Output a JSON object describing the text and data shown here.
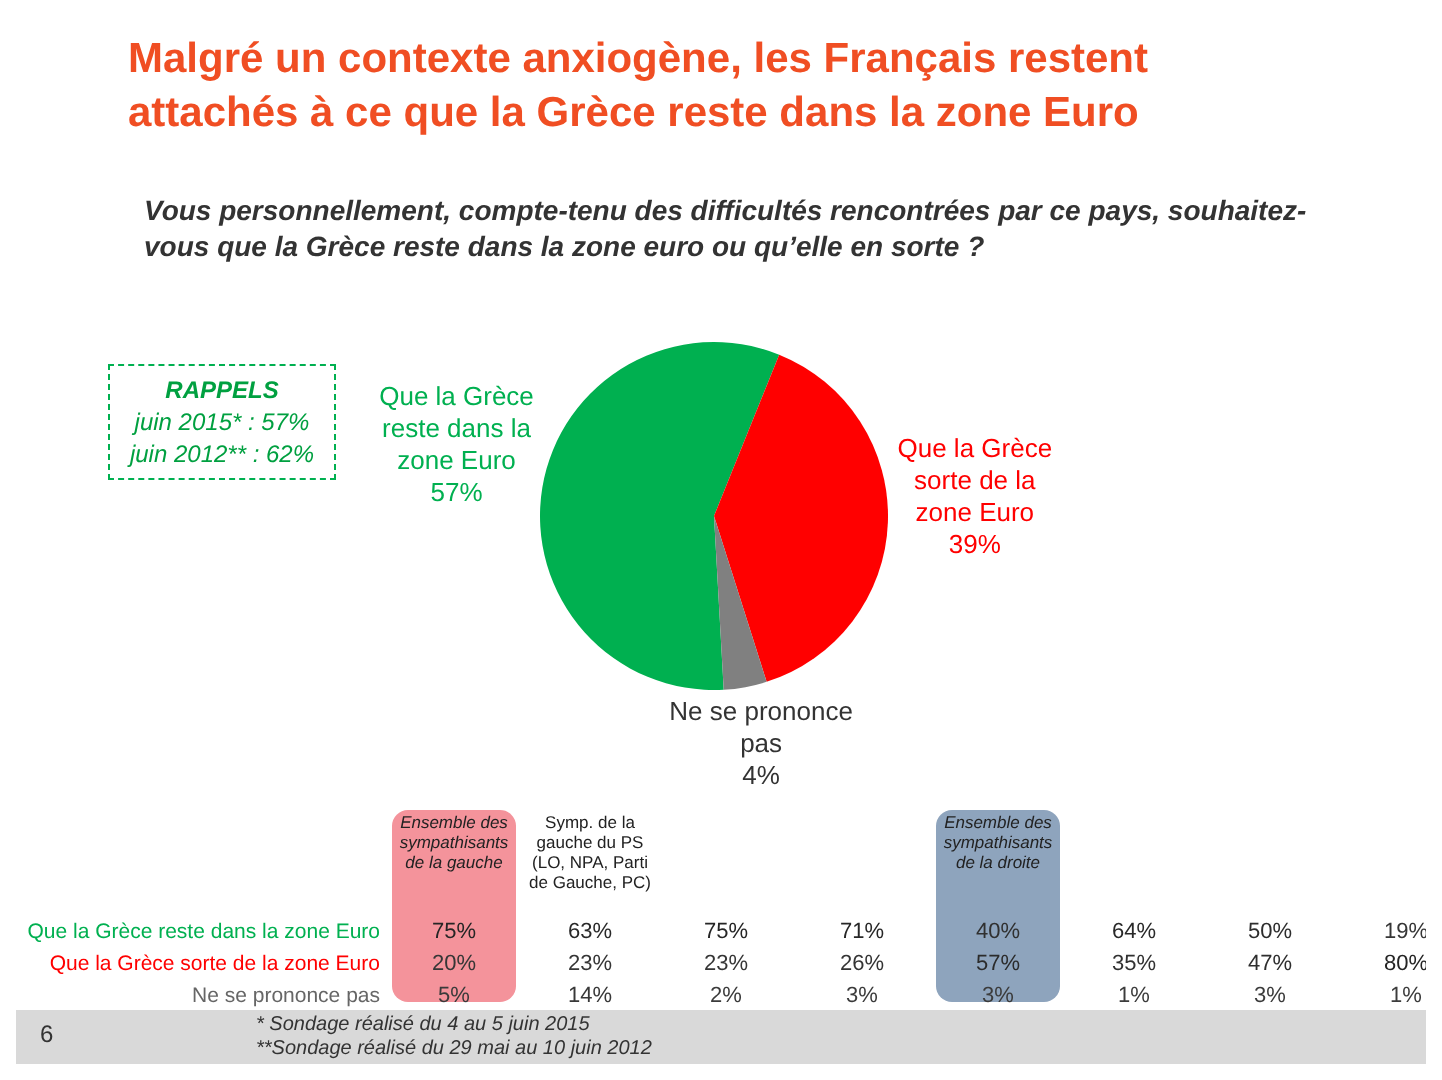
{
  "chart_data": [
    {
      "type": "pie",
      "title": "Malgré un contexte anxiogène, les Français restent attachés à ce que la Grèce reste dans la zone Euro",
      "subtitle": "Vous personnellement, compte-tenu des difficultés rencontrées par ce pays, souhaitez-vous que la Grèce reste dans la zone euro ou qu’elle en sorte ?",
      "categories": [
        "Que la Grèce reste dans la zone Euro",
        "Que la Grèce sorte de la zone Euro",
        "Ne se prononce pas"
      ],
      "values": [
        57,
        39,
        4
      ],
      "colors": [
        "#00b050",
        "#ff0000",
        "#808080"
      ],
      "value_labels": [
        "57%",
        "39%",
        "4%"
      ],
      "legend": false,
      "annotations": [
        "RAPPELS",
        "juin 2015* : 57%",
        "juin 2012** : 62%",
        "* Sondage réalisé du 4 au 5 juin 2015",
        "**Sondage réalisé du 29 mai au 10 juin 2012",
        "6"
      ]
    },
    {
      "type": "heatmap",
      "categories": [
        "Ensemble des sympathisants de la gauche",
        "Symp. de la gauche du PS (LO, NPA, Parti de Gauche, PC)",
        null,
        null,
        "Ensemble des sympathisants de la droite",
        null,
        null,
        null
      ],
      "y_categories": [
        "Que la Grèce reste dans la zone Euro",
        "Que la Grèce sorte de la zone Euro",
        "Ne se prononce pas"
      ],
      "colors": [
        "#f4939b",
        null,
        null,
        null,
        "#8ea4bd",
        null,
        null,
        null
      ],
      "cells": [
        [
          75,
          63,
          75,
          71,
          40,
          64,
          50,
          19
        ],
        [
          20,
          23,
          23,
          26,
          57,
          35,
          47,
          80
        ],
        [
          5,
          14,
          2,
          3,
          3,
          1,
          3,
          1
        ]
      ],
      "cell_labels": [
        [
          "75%",
          "63%",
          "75%",
          "71%",
          "40%",
          "64%",
          "50%",
          "19%"
        ],
        [
          "20%",
          "23%",
          "23%",
          "26%",
          "57%",
          "35%",
          "47%",
          "80%"
        ],
        [
          "5%",
          "14%",
          "2%",
          "3%",
          "3%",
          "1%",
          "3%",
          "1%"
        ]
      ]
    }
  ]
}
